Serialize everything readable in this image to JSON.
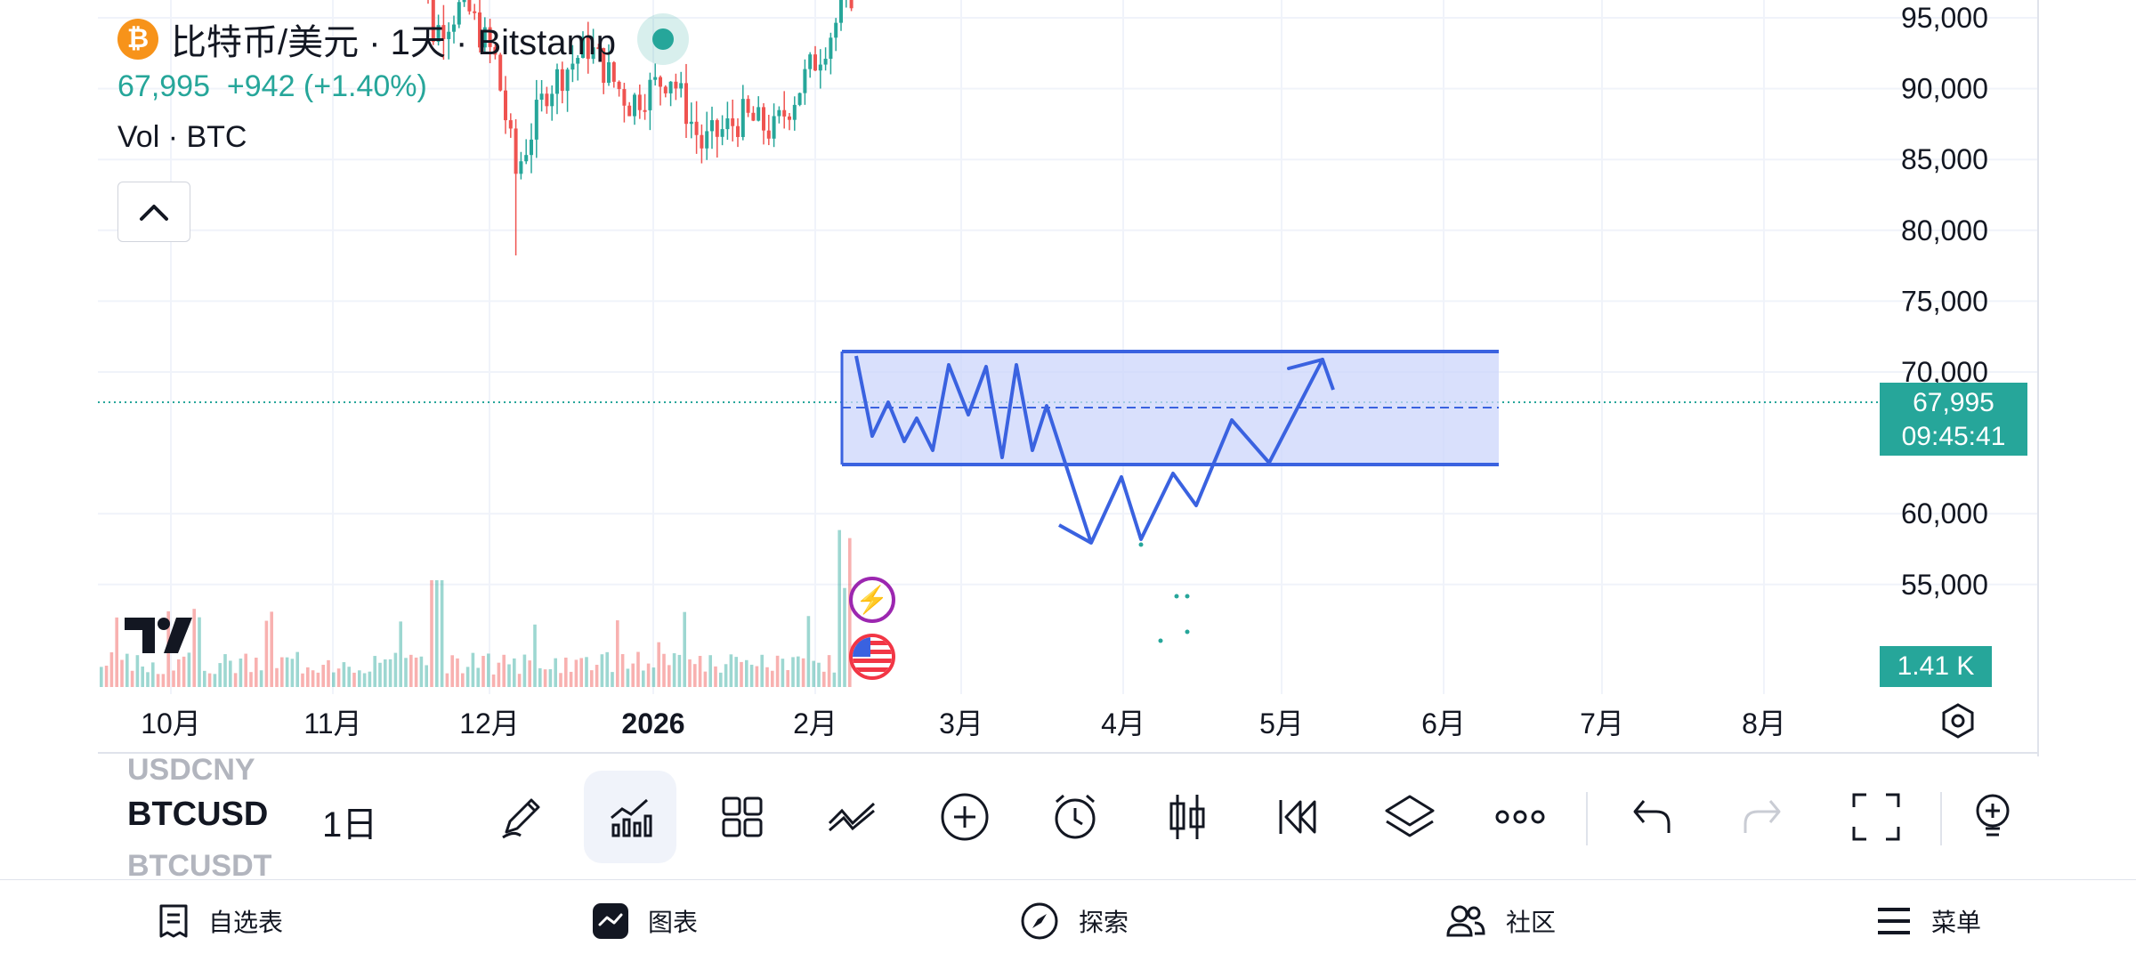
{
  "legend": {
    "symbol_title": "比特币/美元 · 1天 · Bitstamp",
    "btc_logo_glyph": "₿",
    "last_price": "67,995",
    "change": "+942 (+1.40%)",
    "volume_label": "Vol · BTC"
  },
  "price_axis": {
    "labels": [
      "95,000",
      "90,000",
      "85,000",
      "80,000",
      "75,000",
      "70,000",
      "60,000",
      "55,000"
    ]
  },
  "time_axis": {
    "labels": [
      "10月",
      "11月",
      "12月",
      "2026",
      "2月",
      "3月",
      "4月",
      "5月",
      "6月",
      "7月",
      "8月"
    ]
  },
  "price_tag": {
    "price": "67,995",
    "countdown": "09:45:41"
  },
  "volume_tag": "1.41 K",
  "colors": {
    "up": "#26a69a",
    "down": "#ef5350",
    "drawing": "#3a62e0",
    "rect_fill": "#ccd6fb"
  },
  "toolbar": {
    "symbol_above": "USDCNY",
    "symbol": "BTCUSD",
    "symbol_below": "BTCUSDT",
    "interval": "1日",
    "icons": [
      "pen-icon",
      "indicators-icon",
      "layouts-icon",
      "drawing-tools-icon",
      "add-icon",
      "alert-icon",
      "candle-type-icon",
      "replay-icon",
      "layers-icon",
      "more-icon",
      "undo-icon",
      "redo-icon",
      "fullscreen-icon",
      "ideas-icon"
    ]
  },
  "nav": {
    "watchlist": "自选表",
    "chart": "图表",
    "explore": "探索",
    "community": "社区",
    "menu": "菜单"
  }
}
